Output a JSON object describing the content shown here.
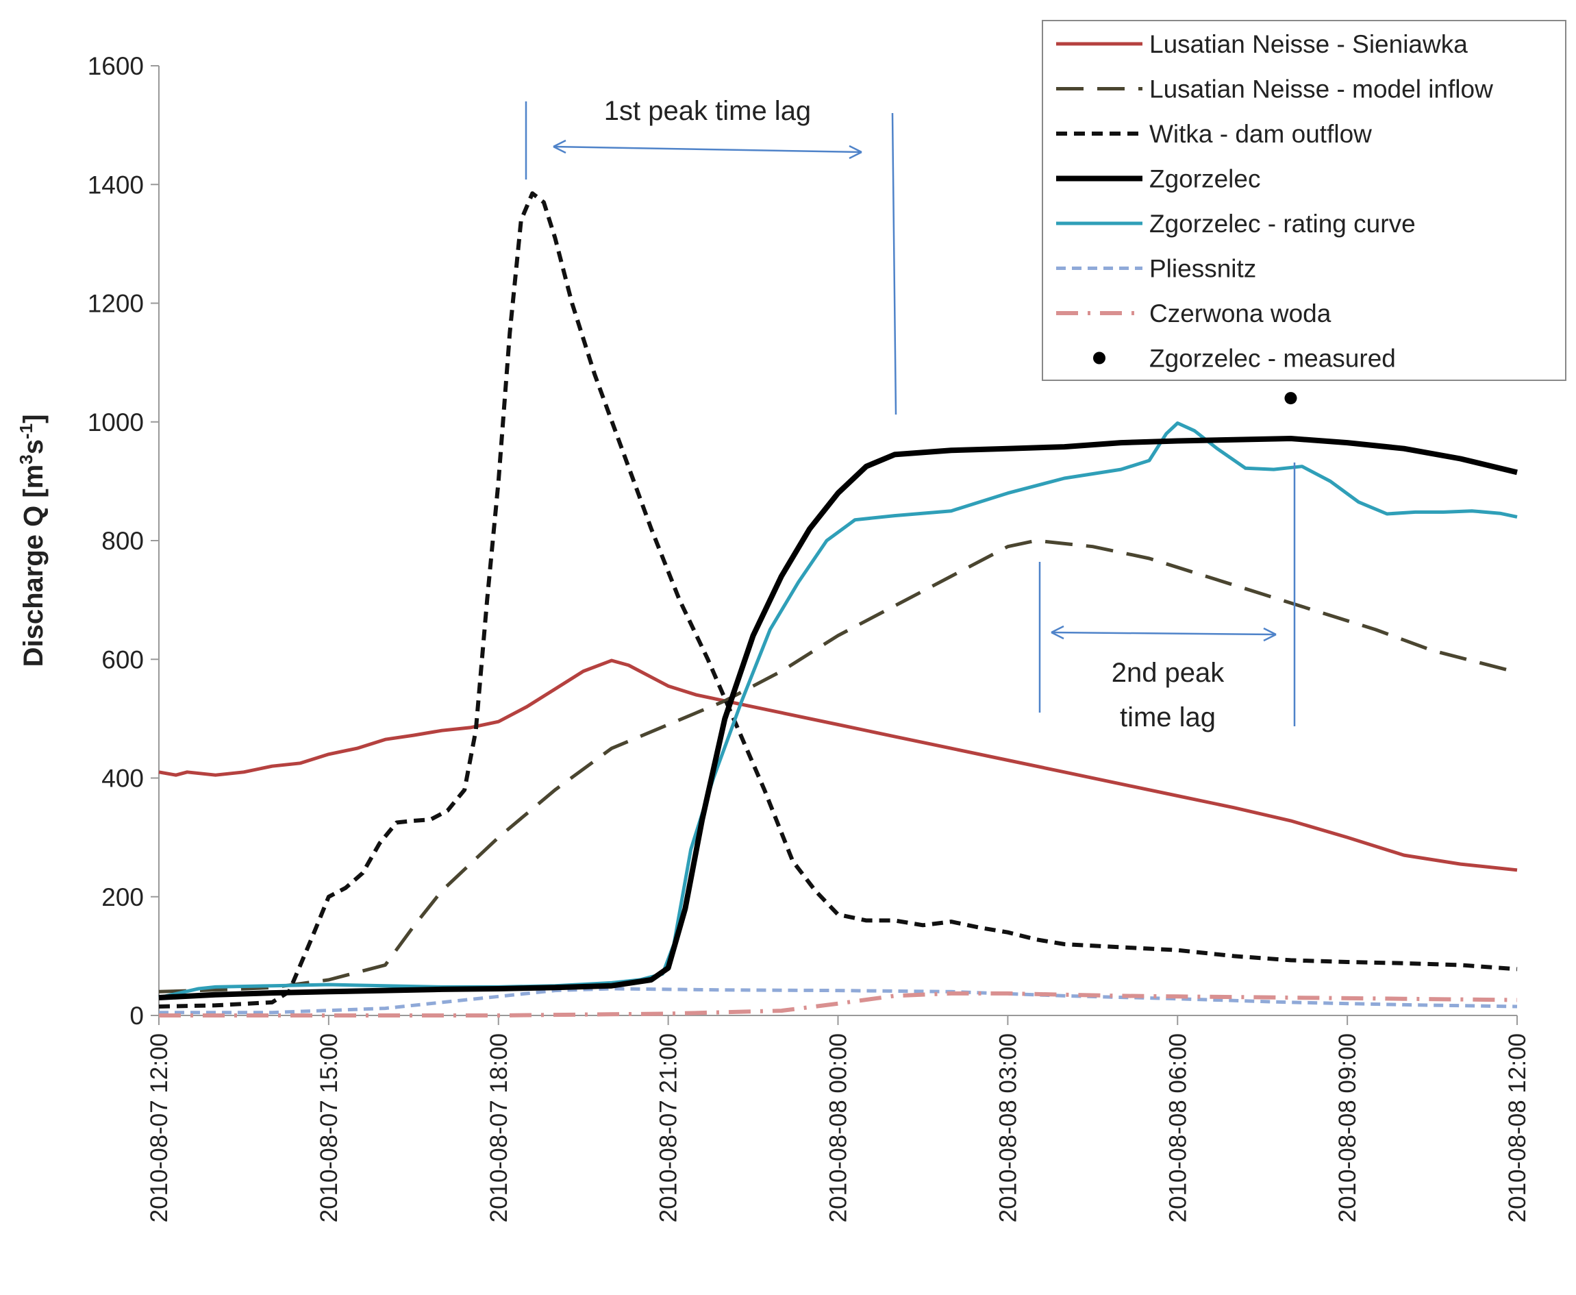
{
  "chart_data": {
    "type": "line",
    "title": "",
    "xlabel": "",
    "ylabel": "Discharge Q [m³s⁻¹]",
    "ylabel_parts": {
      "base": "Discharge Q [m",
      "sup1": "3",
      "mid": "s",
      "sup2": "-1",
      "end": "]"
    },
    "xlim": [
      0,
      24
    ],
    "ylim": [
      0,
      1600
    ],
    "yticks": [
      0,
      200,
      400,
      600,
      800,
      1000,
      1200,
      1400,
      1600
    ],
    "x_unit": "hours since 2010-08-07 12:00",
    "xticks": [
      {
        "x": 0,
        "label": "2010-08-07 12:00"
      },
      {
        "x": 3,
        "label": "2010-08-07 15:00"
      },
      {
        "x": 6,
        "label": "2010-08-07 18:00"
      },
      {
        "x": 9,
        "label": "2010-08-07 21:00"
      },
      {
        "x": 12,
        "label": "2010-08-08 00:00"
      },
      {
        "x": 15,
        "label": "2010-08-08 03:00"
      },
      {
        "x": 18,
        "label": "2010-08-08 06:00"
      },
      {
        "x": 21,
        "label": "2010-08-08 09:00"
      },
      {
        "x": 24,
        "label": "2010-08-08 12:00"
      }
    ],
    "grid": false,
    "legend_position": "top-right",
    "series": [
      {
        "name": "Lusatian Neisse - Sieniawka",
        "color": "#b5413f",
        "style": "solid",
        "points": [
          [
            0,
            410
          ],
          [
            0.3,
            405
          ],
          [
            0.5,
            410
          ],
          [
            1,
            405
          ],
          [
            1.5,
            410
          ],
          [
            2,
            420
          ],
          [
            2.5,
            425
          ],
          [
            3,
            440
          ],
          [
            3.5,
            450
          ],
          [
            4,
            465
          ],
          [
            4.5,
            472
          ],
          [
            5,
            480
          ],
          [
            5.5,
            485
          ],
          [
            6,
            495
          ],
          [
            6.5,
            520
          ],
          [
            7,
            550
          ],
          [
            7.5,
            580
          ],
          [
            8,
            598
          ],
          [
            8.3,
            590
          ],
          [
            8.7,
            570
          ],
          [
            9,
            555
          ],
          [
            9.5,
            540
          ],
          [
            10,
            530
          ],
          [
            11,
            510
          ],
          [
            12,
            490
          ],
          [
            13,
            470
          ],
          [
            14,
            450
          ],
          [
            15,
            430
          ],
          [
            16,
            410
          ],
          [
            17,
            390
          ],
          [
            18,
            370
          ],
          [
            19,
            350
          ],
          [
            20,
            328
          ],
          [
            21,
            300
          ],
          [
            22,
            270
          ],
          [
            23,
            255
          ],
          [
            24,
            245
          ]
        ]
      },
      {
        "name": "Lusatian Neisse - model inflow",
        "color": "#4a4530",
        "style": "longdash",
        "points": [
          [
            0,
            40
          ],
          [
            1,
            43
          ],
          [
            2,
            47
          ],
          [
            3,
            60
          ],
          [
            4,
            85
          ],
          [
            4.5,
            150
          ],
          [
            5,
            210
          ],
          [
            6,
            300
          ],
          [
            7,
            380
          ],
          [
            8,
            450
          ],
          [
            9,
            490
          ],
          [
            10,
            530
          ],
          [
            11,
            580
          ],
          [
            12,
            640
          ],
          [
            13,
            690
          ],
          [
            14,
            740
          ],
          [
            15,
            790
          ],
          [
            15.5,
            800
          ],
          [
            16.5,
            790
          ],
          [
            17.5,
            770
          ],
          [
            18.5,
            740
          ],
          [
            19.5,
            710
          ],
          [
            20.5,
            680
          ],
          [
            21.5,
            650
          ],
          [
            22.5,
            615
          ],
          [
            24,
            578
          ]
        ]
      },
      {
        "name": "Witka - dam outflow",
        "color": "#111111",
        "style": "dash",
        "points": [
          [
            0,
            15
          ],
          [
            1,
            17
          ],
          [
            2,
            22
          ],
          [
            2.3,
            40
          ],
          [
            2.7,
            130
          ],
          [
            3,
            200
          ],
          [
            3.3,
            215
          ],
          [
            3.6,
            240
          ],
          [
            3.9,
            290
          ],
          [
            4.2,
            325
          ],
          [
            4.5,
            328
          ],
          [
            4.8,
            330
          ],
          [
            5.1,
            345
          ],
          [
            5.4,
            380
          ],
          [
            5.6,
            480
          ],
          [
            5.8,
            700
          ],
          [
            6,
            900
          ],
          [
            6.2,
            1150
          ],
          [
            6.4,
            1340
          ],
          [
            6.6,
            1385
          ],
          [
            6.8,
            1370
          ],
          [
            7,
            1310
          ],
          [
            7.3,
            1200
          ],
          [
            7.7,
            1080
          ],
          [
            8.2,
            950
          ],
          [
            8.7,
            820
          ],
          [
            9.2,
            700
          ],
          [
            9.7,
            600
          ],
          [
            10.2,
            490
          ],
          [
            10.7,
            380
          ],
          [
            11.2,
            260
          ],
          [
            11.6,
            210
          ],
          [
            12,
            170
          ],
          [
            12.5,
            160
          ],
          [
            13,
            160
          ],
          [
            13.5,
            152
          ],
          [
            14,
            158
          ],
          [
            14.5,
            148
          ],
          [
            15,
            140
          ],
          [
            15.5,
            128
          ],
          [
            16,
            120
          ],
          [
            17,
            115
          ],
          [
            18,
            110
          ],
          [
            19,
            100
          ],
          [
            20,
            93
          ],
          [
            21,
            90
          ],
          [
            22,
            88
          ],
          [
            23,
            85
          ],
          [
            24,
            78
          ]
        ]
      },
      {
        "name": "Zgorzelec",
        "color": "#000000",
        "style": "solid-thick",
        "points": [
          [
            0,
            30
          ],
          [
            1,
            35
          ],
          [
            2,
            38
          ],
          [
            3,
            40
          ],
          [
            4,
            42
          ],
          [
            5,
            44
          ],
          [
            6,
            45
          ],
          [
            7,
            47
          ],
          [
            8,
            50
          ],
          [
            8.7,
            60
          ],
          [
            9,
            80
          ],
          [
            9.3,
            180
          ],
          [
            9.6,
            330
          ],
          [
            10,
            500
          ],
          [
            10.5,
            640
          ],
          [
            11,
            740
          ],
          [
            11.5,
            820
          ],
          [
            12,
            880
          ],
          [
            12.5,
            925
          ],
          [
            13,
            945
          ],
          [
            14,
            952
          ],
          [
            15,
            955
          ],
          [
            16,
            958
          ],
          [
            17,
            965
          ],
          [
            18,
            968
          ],
          [
            19,
            970
          ],
          [
            20,
            972
          ],
          [
            21,
            965
          ],
          [
            22,
            955
          ],
          [
            23,
            938
          ],
          [
            24,
            915
          ]
        ]
      },
      {
        "name": "Zgorzelec - rating curve",
        "color": "#2f9fb8",
        "style": "solid",
        "points": [
          [
            0,
            30
          ],
          [
            0.7,
            45
          ],
          [
            1,
            48
          ],
          [
            2,
            50
          ],
          [
            3,
            52
          ],
          [
            4,
            50
          ],
          [
            5,
            48
          ],
          [
            6,
            48
          ],
          [
            7,
            50
          ],
          [
            8,
            55
          ],
          [
            8.5,
            60
          ],
          [
            8.9,
            70
          ],
          [
            9.1,
            120
          ],
          [
            9.4,
            280
          ],
          [
            9.8,
            400
          ],
          [
            10.3,
            530
          ],
          [
            10.8,
            650
          ],
          [
            11.3,
            730
          ],
          [
            11.8,
            800
          ],
          [
            12.3,
            835
          ],
          [
            13,
            842
          ],
          [
            14,
            850
          ],
          [
            15,
            880
          ],
          [
            16,
            905
          ],
          [
            17,
            920
          ],
          [
            17.5,
            935
          ],
          [
            17.8,
            980
          ],
          [
            18,
            998
          ],
          [
            18.3,
            985
          ],
          [
            18.7,
            955
          ],
          [
            19.2,
            922
          ],
          [
            19.7,
            920
          ],
          [
            20.2,
            925
          ],
          [
            20.7,
            900
          ],
          [
            21.2,
            865
          ],
          [
            21.7,
            845
          ],
          [
            22.2,
            848
          ],
          [
            22.7,
            848
          ],
          [
            23.2,
            850
          ],
          [
            23.7,
            846
          ],
          [
            24,
            840
          ]
        ]
      },
      {
        "name": "Pliessnitz",
        "color": "#8fa9d8",
        "style": "shortdash",
        "points": [
          [
            0,
            5
          ],
          [
            2,
            5
          ],
          [
            4,
            12
          ],
          [
            5,
            22
          ],
          [
            6,
            32
          ],
          [
            7,
            42
          ],
          [
            8,
            45
          ],
          [
            10,
            43
          ],
          [
            12,
            42
          ],
          [
            14,
            40
          ],
          [
            16,
            33
          ],
          [
            18,
            28
          ],
          [
            20,
            22
          ],
          [
            22,
            18
          ],
          [
            24,
            15
          ]
        ]
      },
      {
        "name": "Czerwona woda",
        "color": "#d99090",
        "style": "dashdot",
        "points": [
          [
            0,
            0
          ],
          [
            3,
            0
          ],
          [
            6,
            0
          ],
          [
            9,
            3
          ],
          [
            11,
            8
          ],
          [
            12,
            20
          ],
          [
            13,
            33
          ],
          [
            14,
            37
          ],
          [
            15,
            37
          ],
          [
            16,
            35
          ],
          [
            17,
            33
          ],
          [
            18,
            32
          ],
          [
            19,
            31
          ],
          [
            20,
            30
          ],
          [
            22,
            28
          ],
          [
            24,
            26
          ]
        ]
      }
    ],
    "measured": {
      "name": "Zgorzelec - measured",
      "color": "#000000",
      "x": 20,
      "y": 1040
    },
    "annotations": {
      "first_peak": {
        "text": "1st peak time lag",
        "x_start": 6.6,
        "x_end": 13.0
      },
      "second_peak": {
        "lines": [
          "2nd peak",
          "time lag"
        ],
        "x_start": 15.5,
        "x_end": 20.0
      }
    }
  }
}
